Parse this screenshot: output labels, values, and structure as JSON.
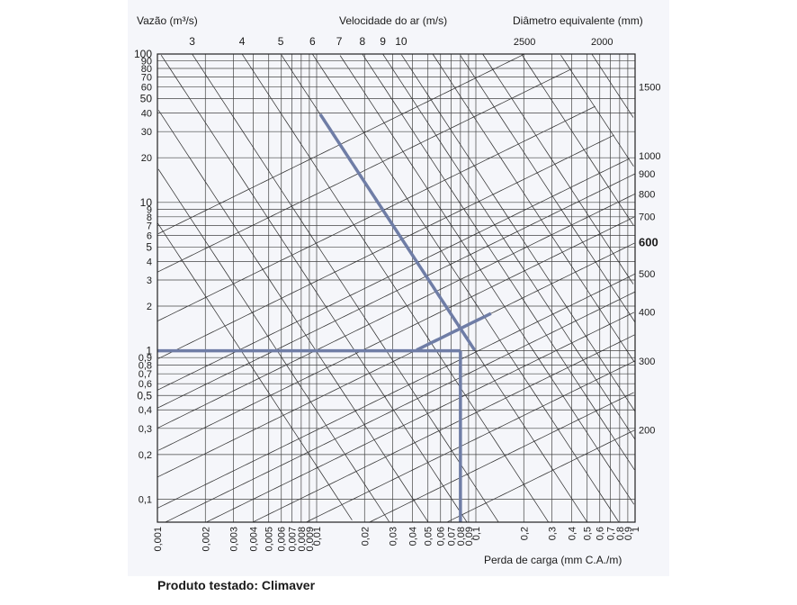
{
  "caption": "Produto testado: Climaver",
  "chart_data": {
    "type": "line",
    "title_left": "Vazão (m³/s)",
    "title_center": "Velocidade do ar (m/s)",
    "title_right": "Diâmetro equivalente (mm)",
    "xlabel": "Perda de carga (mm C.A./m)",
    "x_scale": "log",
    "y_scale": "log",
    "xlim": [
      0.001,
      1
    ],
    "ylim": [
      0.07,
      100
    ],
    "grid": true,
    "x_ticks": [
      {
        "v": 0.001,
        "l": "0,001"
      },
      {
        "v": 0.002,
        "l": "0,002"
      },
      {
        "v": 0.003,
        "l": "0,003"
      },
      {
        "v": 0.004,
        "l": "0,004"
      },
      {
        "v": 0.005,
        "l": "0,005"
      },
      {
        "v": 0.006,
        "l": "0,006"
      },
      {
        "v": 0.007,
        "l": "0,007"
      },
      {
        "v": 0.008,
        "l": "0,008"
      },
      {
        "v": 0.009,
        "l": "0,009"
      },
      {
        "v": 0.01,
        "l": "0,01"
      },
      {
        "v": 0.02,
        "l": "0,02"
      },
      {
        "v": 0.03,
        "l": "0,03"
      },
      {
        "v": 0.04,
        "l": "0,04"
      },
      {
        "v": 0.05,
        "l": "0,05"
      },
      {
        "v": 0.06,
        "l": "0,06"
      },
      {
        "v": 0.07,
        "l": "0,07"
      },
      {
        "v": 0.08,
        "l": "0,08"
      },
      {
        "v": 0.09,
        "l": "0,09"
      },
      {
        "v": 0.1,
        "l": "0,1"
      },
      {
        "v": 0.2,
        "l": "0,2"
      },
      {
        "v": 0.3,
        "l": "0,3"
      },
      {
        "v": 0.4,
        "l": "0,4"
      },
      {
        "v": 0.5,
        "l": "0,5"
      },
      {
        "v": 0.6,
        "l": "0,6"
      },
      {
        "v": 0.7,
        "l": "0,7"
      },
      {
        "v": 0.8,
        "l": "0,8"
      },
      {
        "v": 0.9,
        "l": "0,9"
      },
      {
        "v": 1,
        "l": "1"
      }
    ],
    "y_ticks": [
      {
        "v": 100,
        "l": "100"
      },
      {
        "v": 90,
        "l": "90"
      },
      {
        "v": 80,
        "l": "80"
      },
      {
        "v": 70,
        "l": "70"
      },
      {
        "v": 60,
        "l": "60"
      },
      {
        "v": 50,
        "l": "50"
      },
      {
        "v": 40,
        "l": "40"
      },
      {
        "v": 30,
        "l": "30"
      },
      {
        "v": 20,
        "l": "20"
      },
      {
        "v": 10,
        "l": "10"
      },
      {
        "v": 9,
        "l": "9"
      },
      {
        "v": 8,
        "l": "8"
      },
      {
        "v": 7,
        "l": "7"
      },
      {
        "v": 6,
        "l": "6"
      },
      {
        "v": 5,
        "l": "5"
      },
      {
        "v": 4,
        "l": "4"
      },
      {
        "v": 3,
        "l": "3"
      },
      {
        "v": 2,
        "l": "2"
      },
      {
        "v": 1,
        "l": "1"
      },
      {
        "v": 0.9,
        "l": "0,9"
      },
      {
        "v": 0.8,
        "l": "0,8"
      },
      {
        "v": 0.7,
        "l": "0,7"
      },
      {
        "v": 0.6,
        "l": "0,6"
      },
      {
        "v": 0.5,
        "l": "0,5"
      },
      {
        "v": 0.4,
        "l": "0,4"
      },
      {
        "v": 0.3,
        "l": "0,3"
      },
      {
        "v": 0.2,
        "l": "0,2"
      },
      {
        "v": 0.1,
        "l": "0,1"
      }
    ],
    "velocity_lines": [
      {
        "v": 3,
        "l": "3"
      },
      {
        "v": 4,
        "l": "4"
      },
      {
        "v": 5,
        "l": "5"
      },
      {
        "v": 6,
        "l": "6"
      },
      {
        "v": 7,
        "l": "7"
      },
      {
        "v": 8,
        "l": "8"
      },
      {
        "v": 9,
        "l": "9"
      },
      {
        "v": 10,
        "l": "10"
      }
    ],
    "diameter_lines": [
      {
        "v": 2500,
        "l": "2500"
      },
      {
        "v": 2000,
        "l": "2000"
      },
      {
        "v": 1500,
        "l": "1500"
      },
      {
        "v": 1000,
        "l": "1000"
      },
      {
        "v": 900,
        "l": "900"
      },
      {
        "v": 800,
        "l": "800"
      },
      {
        "v": 700,
        "l": "700"
      },
      {
        "v": 600,
        "l": "600"
      },
      {
        "v": 500,
        "l": "500"
      },
      {
        "v": 400,
        "l": "400"
      },
      {
        "v": 300,
        "l": "300"
      },
      {
        "v": 200,
        "l": "200"
      }
    ],
    "extra_velocity_lines": [
      1.3,
      1.6,
      2,
      2.5,
      12,
      14,
      16,
      20,
      25,
      30,
      40
    ],
    "extra_diameter_lines": [
      250,
      350,
      450,
      1200
    ],
    "highlighted_diameter": "600",
    "example": {
      "flow": 1,
      "pressure_loss": 0.08,
      "velocity": 5,
      "diameter": 600,
      "color": "#6f7da6"
    }
  }
}
